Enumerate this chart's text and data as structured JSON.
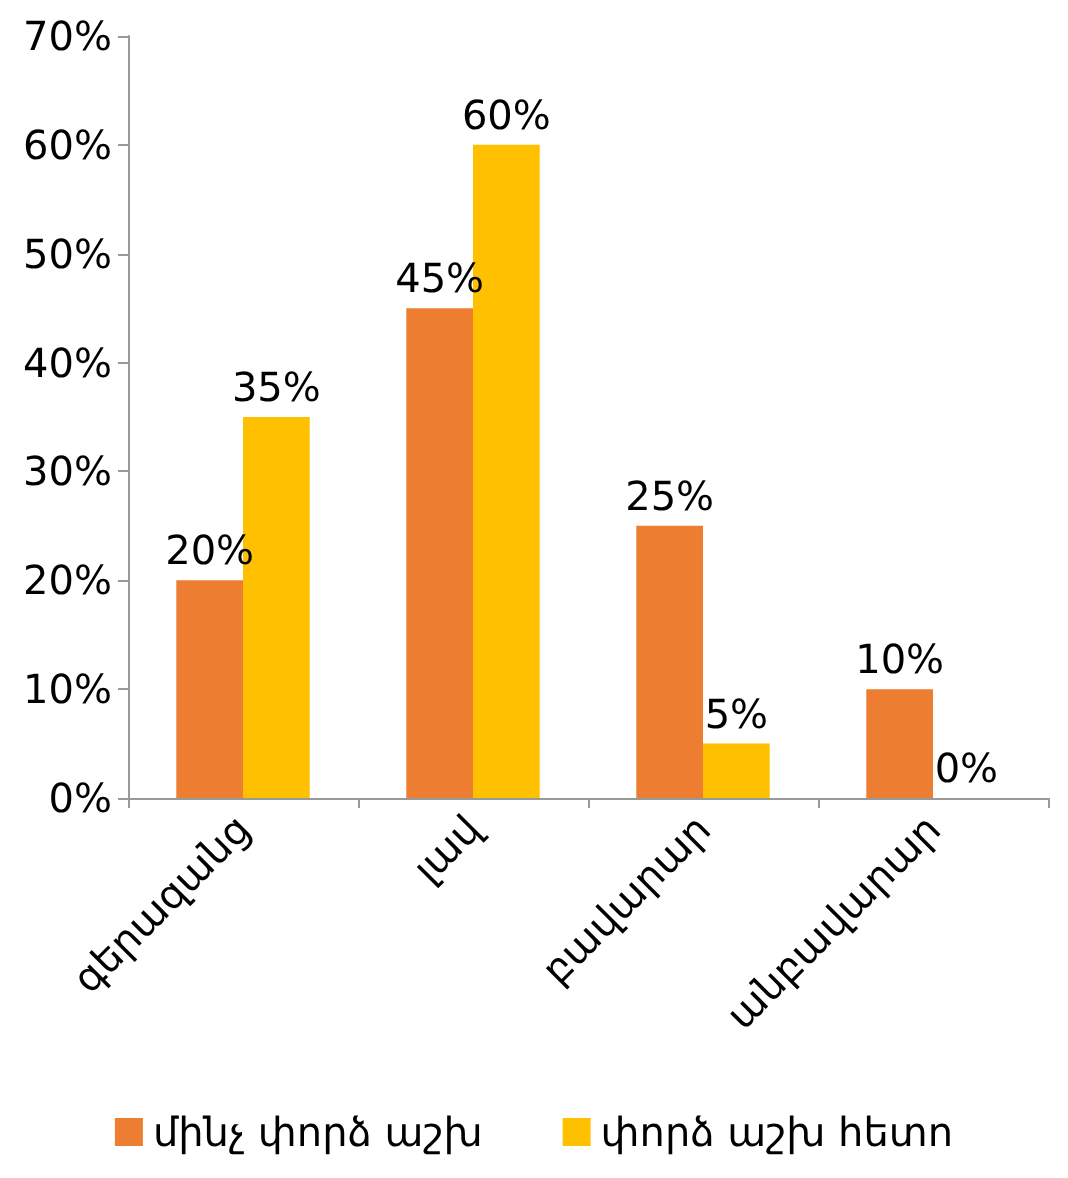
{
  "chart_data": {
    "type": "bar",
    "categories": [
      "գերազանց",
      "լավ",
      "բավարար",
      "անբավարար"
    ],
    "series": [
      {
        "name": "մինչ փորձ աշխ",
        "color": "#ed7d31",
        "values": [
          20,
          45,
          25,
          10
        ],
        "value_labels": [
          "20%",
          "45%",
          "25%",
          "10%"
        ]
      },
      {
        "name": "փորձ աշխ հետո",
        "color": "#ffc000",
        "values": [
          35,
          60,
          5,
          0
        ],
        "value_labels": [
          "35%",
          "60%",
          "5%",
          "0%"
        ]
      }
    ],
    "ylim": [
      0,
      70
    ],
    "yticks": [
      {
        "value": 0,
        "label": "0%"
      },
      {
        "value": 10,
        "label": "10%"
      },
      {
        "value": 20,
        "label": "20%"
      },
      {
        "value": 30,
        "label": "30%"
      },
      {
        "value": 40,
        "label": "40%"
      },
      {
        "value": 50,
        "label": "50%"
      },
      {
        "value": 60,
        "label": "60%"
      },
      {
        "value": 70,
        "label": "70%"
      }
    ],
    "grid": false,
    "legend": "bottom"
  }
}
